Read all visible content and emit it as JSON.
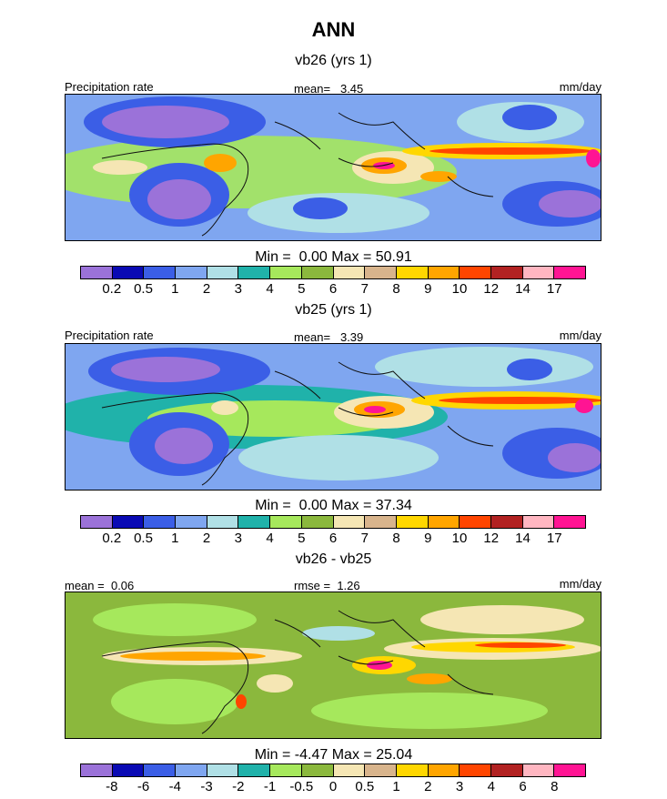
{
  "title": "ANN",
  "chart_data": [
    {
      "type": "heatmap",
      "title": "vb26 (yrs 1)",
      "variable": "Precipitation rate",
      "mean_label": "mean=",
      "mean": "3.45",
      "units": "mm/day",
      "min_label": "Min =",
      "min": "0.00",
      "max_label": "Max =",
      "max": "50.91",
      "colorbar_levels": [
        "0.2",
        "0.5",
        "1",
        "2",
        "3",
        "4",
        "5",
        "6",
        "7",
        "8",
        "9",
        "10",
        "12",
        "14",
        "17"
      ],
      "colorbar_colors": [
        "#9b72d9",
        "#0a0ab4",
        "#3b5ee6",
        "#7fa6f0",
        "#b0e0e6",
        "#20b2aa",
        "#a6e85c",
        "#8bb83d",
        "#f5e6b4",
        "#d8b48c",
        "#ffd700",
        "#ffa500",
        "#ff4500",
        "#b22222",
        "#ffb6c1",
        "#ff1493"
      ]
    },
    {
      "type": "heatmap",
      "title": "vb25 (yrs 1)",
      "variable": "Precipitation rate",
      "mean_label": "mean=",
      "mean": "3.39",
      "units": "mm/day",
      "min_label": "Min =",
      "min": "0.00",
      "max_label": "Max =",
      "max": "37.34",
      "colorbar_levels": [
        "0.2",
        "0.5",
        "1",
        "2",
        "3",
        "4",
        "5",
        "6",
        "7",
        "8",
        "9",
        "10",
        "12",
        "14",
        "17"
      ],
      "colorbar_colors": [
        "#9b72d9",
        "#0a0ab4",
        "#3b5ee6",
        "#7fa6f0",
        "#b0e0e6",
        "#20b2aa",
        "#a6e85c",
        "#8bb83d",
        "#f5e6b4",
        "#d8b48c",
        "#ffd700",
        "#ffa500",
        "#ff4500",
        "#b22222",
        "#ffb6c1",
        "#ff1493"
      ]
    },
    {
      "type": "heatmap",
      "title": "vb26 - vb25",
      "mean_label": "mean =",
      "mean": "0.06",
      "rmse_label": "rmse =",
      "rmse": "1.26",
      "units": "mm/day",
      "min_label": "Min =",
      "min": "-4.47",
      "max_label": "Max =",
      "max": "25.04",
      "colorbar_levels": [
        "-8",
        "-6",
        "-4",
        "-3",
        "-2",
        "-1",
        "-0.5",
        "0",
        "0.5",
        "1",
        "2",
        "3",
        "4",
        "6",
        "8"
      ],
      "colorbar_colors": [
        "#9b72d9",
        "#0a0ab4",
        "#3b5ee6",
        "#7fa6f0",
        "#b0e0e6",
        "#20b2aa",
        "#a6e85c",
        "#8bb83d",
        "#f5e6b4",
        "#d8b48c",
        "#ffd700",
        "#ffa500",
        "#ff4500",
        "#b22222",
        "#ffb6c1",
        "#ff1493"
      ]
    }
  ]
}
